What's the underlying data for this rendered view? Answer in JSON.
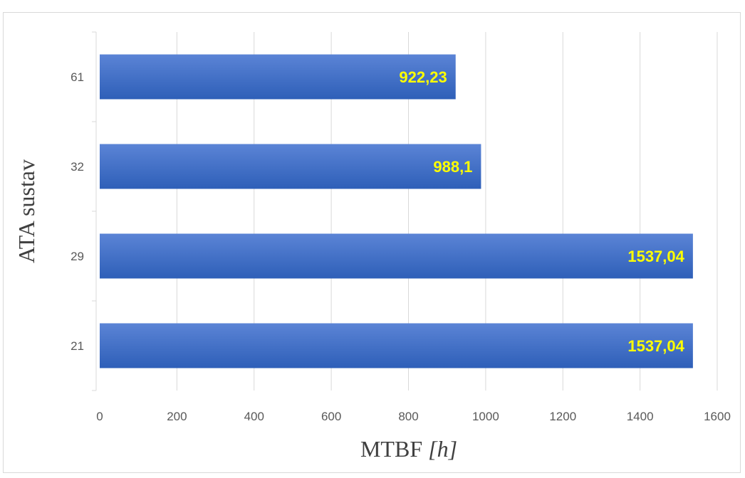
{
  "chart_data": {
    "type": "bar",
    "orientation": "horizontal",
    "categories": [
      "61",
      "32",
      "29",
      "21"
    ],
    "values": [
      922.23,
      988.1,
      1537.04,
      1537.04
    ],
    "value_labels": [
      "922,23",
      "988,1",
      "1537,04",
      "1537,04"
    ],
    "x_ticks": [
      "0",
      "200",
      "400",
      "600",
      "800",
      "1000",
      "1200",
      "1400",
      "1600"
    ],
    "xlim": [
      0,
      1600
    ],
    "xlabel_main": "MTBF ",
    "xlabel_unit": "[h]",
    "ylabel": "ATA sustav",
    "grid": true,
    "legend": "none",
    "colors": {
      "bar_top": "#5b84d6",
      "bar_bottom": "#2e5fb8",
      "value_label": "#ffff00",
      "grid": "#d9d9d9",
      "tick_text": "#595959",
      "axis_title": "#404040"
    }
  }
}
